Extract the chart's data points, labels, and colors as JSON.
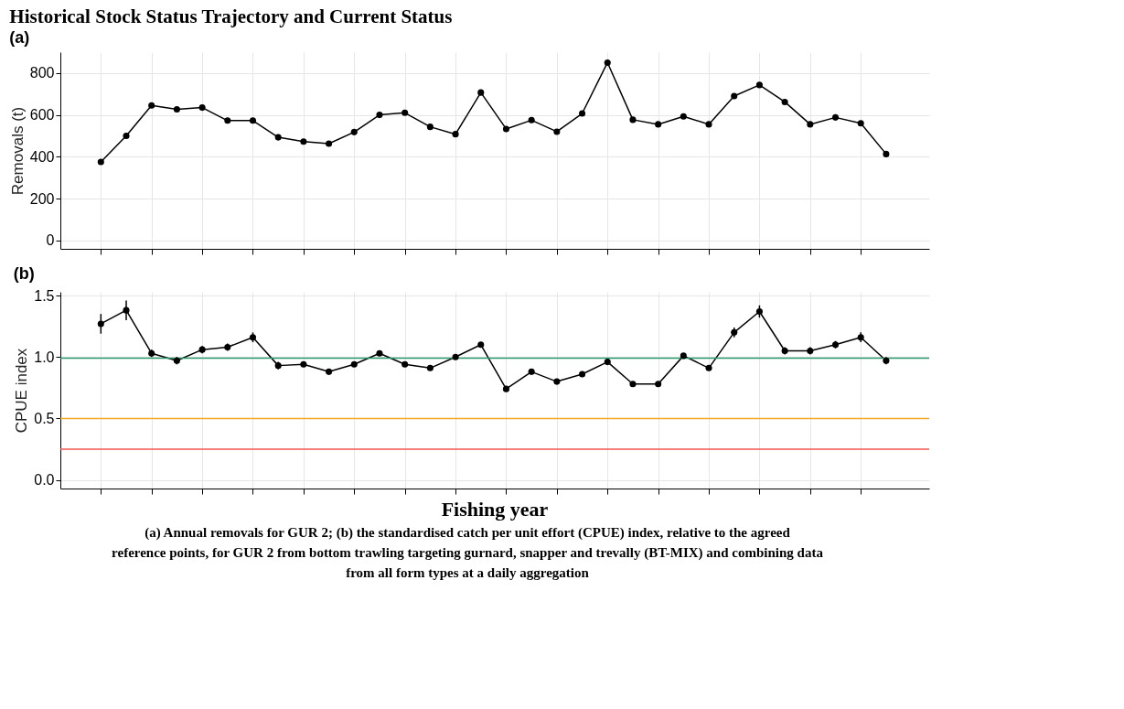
{
  "chart_data": [
    {
      "type": "line",
      "title": "Historical Stock Status Trajectory and Current Status",
      "subtitle": "(a)",
      "ylabel": "Removals (t)",
      "categories": [
        null,
        null,
        null,
        null,
        null,
        null,
        null,
        null,
        null,
        null,
        null,
        null,
        null,
        null,
        null,
        null,
        null,
        null,
        null,
        null,
        null,
        null,
        null,
        null,
        null,
        null,
        null,
        null,
        null,
        null,
        null,
        null
      ],
      "series": [
        {
          "color": "#000000",
          "values": [
            375,
            500,
            645,
            627,
            635,
            573,
            573,
            493,
            473,
            463,
            518,
            600,
            610,
            543,
            508,
            707,
            533,
            575,
            520,
            607,
            850,
            577,
            555,
            593,
            555,
            690,
            743,
            662,
            555,
            588,
            560,
            413
          ]
        }
      ],
      "ylim": [
        -40,
        900
      ],
      "yticks": [
        0,
        200,
        400,
        600,
        800
      ],
      "grid": true,
      "marker": "circle",
      "line_style": "solid",
      "tick_labels": "y"
    },
    {
      "type": "line",
      "title": "(b)",
      "ylabel": "CPUE index",
      "xlabel": "Fishing year",
      "categories": [
        null,
        null,
        null,
        null,
        null,
        null,
        null,
        null,
        null,
        null,
        null,
        null,
        null,
        null,
        null,
        null,
        null,
        null,
        null,
        null,
        null,
        null,
        null,
        null,
        null,
        null,
        null,
        null,
        null,
        null,
        null,
        null
      ],
      "series": [
        {
          "color": "#000000",
          "values": [
            1.27,
            1.38,
            1.03,
            0.97,
            1.06,
            1.08,
            1.16,
            0.93,
            0.94,
            0.88,
            0.94,
            1.03,
            0.94,
            0.91,
            1.0,
            1.1,
            0.74,
            0.88,
            0.8,
            0.86,
            0.96,
            0.78,
            0.78,
            1.01,
            0.91,
            1.2,
            1.37,
            1.05,
            1.05,
            1.1,
            1.16,
            0.97
          ],
          "errors": [
            0.08,
            0.08,
            0.03,
            0.03,
            0.03,
            0.03,
            0.04,
            0.03,
            0.02,
            0.02,
            0.02,
            0.02,
            0.02,
            0.02,
            0.02,
            0.02,
            0.02,
            0.02,
            0.02,
            0.02,
            0.02,
            0.02,
            0.02,
            0.02,
            0.02,
            0.04,
            0.05,
            0.03,
            0.03,
            0.03,
            0.04,
            0.03
          ]
        }
      ],
      "ylim": [
        -0.07,
        1.53
      ],
      "yticks": [
        {
          "value": 0,
          "label": "0.0"
        },
        0.5,
        {
          "value": 1,
          "label": "1.0"
        },
        1.5
      ],
      "grid": true,
      "marker": "circle",
      "line_style": "solid",
      "tick_labels": "y",
      "ref_lines": [
        {
          "axis": "y",
          "value": 0.99,
          "label": null,
          "color": "#2e9a6e"
        },
        {
          "axis": "y",
          "value": 0.5,
          "label": null,
          "color": "#f5a623"
        },
        {
          "axis": "y",
          "value": 0.25,
          "label": null,
          "color": "#f0584e"
        }
      ],
      "annotations": [
        "(a) Annual removals for GUR 2; (b) the standardised catch per unit effort (CPUE) index, relative to the agreed reference points, for GUR 2 from bottom trawling targeting gurnard, snapper and trevally (BT-MIX) and combining data from all form types at a daily aggregation"
      ]
    }
  ]
}
